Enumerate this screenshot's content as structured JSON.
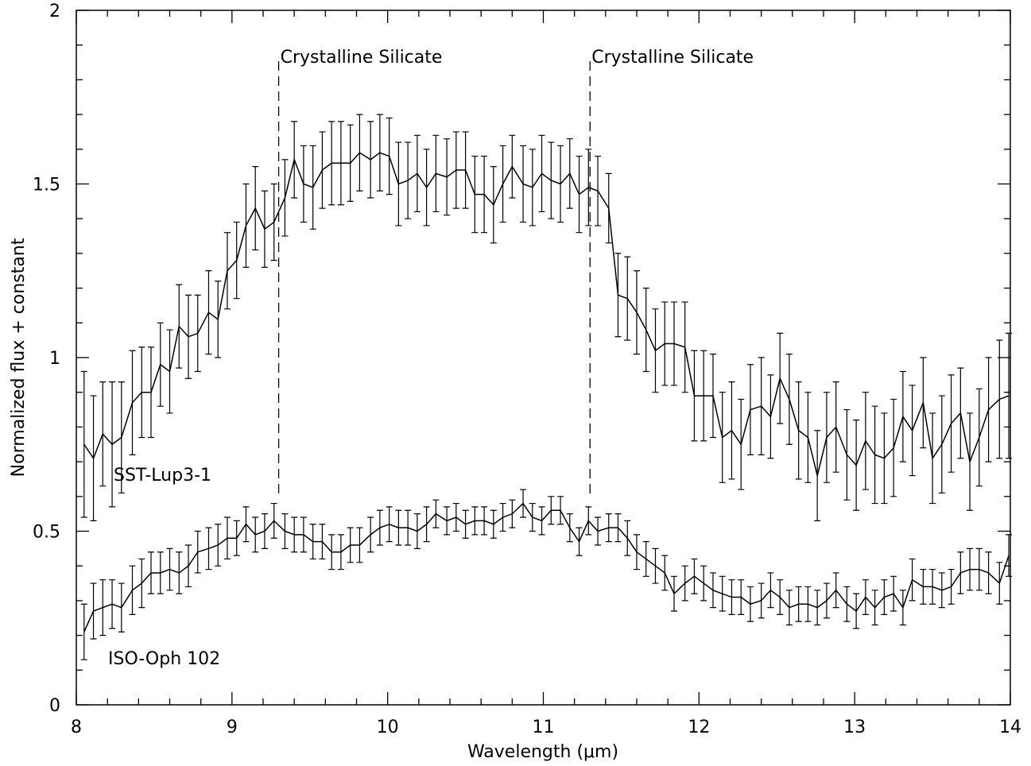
{
  "chart_data": {
    "type": "line",
    "xlabel": "Wavelength (μm)",
    "ylabel": "Normalized flux + constant",
    "xlim": [
      8,
      14
    ],
    "ylim": [
      0,
      2
    ],
    "xticks": [
      8,
      9,
      10,
      11,
      12,
      13,
      14
    ],
    "yticks": [
      0,
      0.5,
      1,
      1.5,
      2
    ],
    "xticks_minor": [
      8.2,
      8.4,
      8.6,
      8.8,
      9.2,
      9.4,
      9.6,
      9.8,
      10.2,
      10.4,
      10.6,
      10.8,
      11.2,
      11.4,
      11.6,
      11.8,
      12.2,
      12.4,
      12.6,
      12.8,
      13.2,
      13.4,
      13.6,
      13.8
    ],
    "yticks_minor": [
      0.1,
      0.2,
      0.3,
      0.4,
      0.6,
      0.7,
      0.8,
      0.9,
      1.1,
      1.2,
      1.3,
      1.4,
      1.6,
      1.7,
      1.8,
      1.9
    ],
    "color": "#000000",
    "x": [
      8.05,
      8.11,
      8.17,
      8.23,
      8.29,
      8.36,
      8.42,
      8.48,
      8.54,
      8.6,
      8.66,
      8.72,
      8.78,
      8.85,
      8.91,
      8.97,
      9.03,
      9.09,
      9.15,
      9.21,
      9.27,
      9.34,
      9.4,
      9.46,
      9.52,
      9.58,
      9.64,
      9.7,
      9.76,
      9.82,
      9.89,
      9.95,
      10.01,
      10.07,
      10.13,
      10.19,
      10.25,
      10.31,
      10.38,
      10.44,
      10.5,
      10.56,
      10.62,
      10.68,
      10.74,
      10.8,
      10.87,
      10.93,
      10.99,
      11.05,
      11.11,
      11.17,
      11.23,
      11.29,
      11.35,
      11.42,
      11.48,
      11.54,
      11.6,
      11.66,
      11.72,
      11.78,
      11.84,
      11.91,
      11.97,
      12.03,
      12.09,
      12.15,
      12.21,
      12.27,
      12.33,
      12.4,
      12.46,
      12.52,
      12.58,
      12.64,
      12.7,
      12.76,
      12.82,
      12.88,
      12.95,
      13.01,
      13.07,
      13.13,
      13.19,
      13.25,
      13.31,
      13.37,
      13.44,
      13.5,
      13.56,
      13.62,
      13.68,
      13.74,
      13.8,
      13.86,
      13.93,
      13.99
    ],
    "series": [
      {
        "name": "SST-Lup3-1",
        "values": [
          0.75,
          0.71,
          0.78,
          0.75,
          0.77,
          0.87,
          0.9,
          0.9,
          0.98,
          0.96,
          1.09,
          1.06,
          1.07,
          1.13,
          1.11,
          1.25,
          1.28,
          1.38,
          1.43,
          1.37,
          1.39,
          1.46,
          1.57,
          1.5,
          1.49,
          1.54,
          1.56,
          1.56,
          1.56,
          1.59,
          1.57,
          1.59,
          1.58,
          1.5,
          1.51,
          1.53,
          1.49,
          1.53,
          1.52,
          1.54,
          1.54,
          1.47,
          1.47,
          1.44,
          1.5,
          1.55,
          1.5,
          1.49,
          1.53,
          1.51,
          1.5,
          1.53,
          1.47,
          1.49,
          1.48,
          1.43,
          1.18,
          1.17,
          1.13,
          1.08,
          1.02,
          1.04,
          1.04,
          1.03,
          0.89,
          0.89,
          0.89,
          0.77,
          0.79,
          0.75,
          0.85,
          0.86,
          0.83,
          0.94,
          0.88,
          0.79,
          0.77,
          0.66,
          0.77,
          0.8,
          0.72,
          0.69,
          0.76,
          0.72,
          0.71,
          0.74,
          0.83,
          0.79,
          0.87,
          0.71,
          0.75,
          0.81,
          0.84,
          0.7,
          0.77,
          0.85,
          0.88,
          0.89
        ],
        "errors": [
          0.21,
          0.18,
          0.15,
          0.18,
          0.16,
          0.15,
          0.13,
          0.13,
          0.12,
          0.12,
          0.12,
          0.12,
          0.11,
          0.12,
          0.11,
          0.11,
          0.11,
          0.12,
          0.12,
          0.11,
          0.11,
          0.11,
          0.11,
          0.11,
          0.12,
          0.11,
          0.12,
          0.12,
          0.11,
          0.11,
          0.11,
          0.11,
          0.11,
          0.12,
          0.11,
          0.11,
          0.11,
          0.11,
          0.11,
          0.11,
          0.11,
          0.11,
          0.11,
          0.11,
          0.11,
          0.09,
          0.11,
          0.11,
          0.11,
          0.11,
          0.11,
          0.1,
          0.11,
          0.11,
          0.1,
          0.1,
          0.12,
          0.12,
          0.12,
          0.12,
          0.12,
          0.12,
          0.12,
          0.13,
          0.13,
          0.13,
          0.12,
          0.13,
          0.14,
          0.13,
          0.13,
          0.14,
          0.12,
          0.13,
          0.13,
          0.14,
          0.13,
          0.13,
          0.13,
          0.13,
          0.13,
          0.13,
          0.14,
          0.14,
          0.13,
          0.14,
          0.13,
          0.13,
          0.13,
          0.13,
          0.14,
          0.14,
          0.13,
          0.14,
          0.14,
          0.15,
          0.17,
          0.18
        ]
      },
      {
        "name": "ISO-Oph 102",
        "values": [
          0.21,
          0.27,
          0.28,
          0.29,
          0.28,
          0.33,
          0.35,
          0.38,
          0.38,
          0.39,
          0.38,
          0.4,
          0.44,
          0.45,
          0.46,
          0.48,
          0.48,
          0.52,
          0.49,
          0.5,
          0.53,
          0.5,
          0.49,
          0.49,
          0.47,
          0.47,
          0.44,
          0.44,
          0.46,
          0.46,
          0.49,
          0.51,
          0.52,
          0.51,
          0.51,
          0.5,
          0.52,
          0.55,
          0.53,
          0.54,
          0.52,
          0.53,
          0.53,
          0.52,
          0.54,
          0.55,
          0.58,
          0.54,
          0.53,
          0.56,
          0.56,
          0.51,
          0.47,
          0.53,
          0.5,
          0.51,
          0.51,
          0.48,
          0.44,
          0.42,
          0.4,
          0.38,
          0.32,
          0.35,
          0.37,
          0.35,
          0.33,
          0.32,
          0.31,
          0.31,
          0.29,
          0.3,
          0.33,
          0.31,
          0.28,
          0.29,
          0.29,
          0.28,
          0.3,
          0.33,
          0.29,
          0.27,
          0.31,
          0.28,
          0.31,
          0.32,
          0.28,
          0.36,
          0.34,
          0.34,
          0.33,
          0.34,
          0.38,
          0.39,
          0.39,
          0.38,
          0.35,
          0.43
        ],
        "errors": [
          0.08,
          0.08,
          0.08,
          0.07,
          0.07,
          0.07,
          0.07,
          0.06,
          0.06,
          0.06,
          0.06,
          0.06,
          0.06,
          0.06,
          0.06,
          0.06,
          0.05,
          0.05,
          0.05,
          0.05,
          0.05,
          0.05,
          0.05,
          0.05,
          0.05,
          0.05,
          0.05,
          0.05,
          0.05,
          0.05,
          0.05,
          0.05,
          0.05,
          0.05,
          0.05,
          0.05,
          0.05,
          0.04,
          0.04,
          0.04,
          0.04,
          0.04,
          0.04,
          0.04,
          0.04,
          0.04,
          0.04,
          0.04,
          0.04,
          0.04,
          0.04,
          0.04,
          0.04,
          0.04,
          0.04,
          0.04,
          0.04,
          0.05,
          0.05,
          0.05,
          0.05,
          0.05,
          0.05,
          0.05,
          0.05,
          0.05,
          0.05,
          0.05,
          0.05,
          0.05,
          0.05,
          0.05,
          0.05,
          0.05,
          0.05,
          0.05,
          0.05,
          0.05,
          0.05,
          0.05,
          0.05,
          0.05,
          0.05,
          0.05,
          0.05,
          0.05,
          0.05,
          0.06,
          0.05,
          0.05,
          0.05,
          0.05,
          0.06,
          0.06,
          0.06,
          0.06,
          0.06,
          0.06
        ]
      }
    ],
    "markers": [
      {
        "x": 9.3,
        "label": "Crystalline Silicate"
      },
      {
        "x": 11.3,
        "label": "Crystalline Silicate"
      }
    ]
  }
}
